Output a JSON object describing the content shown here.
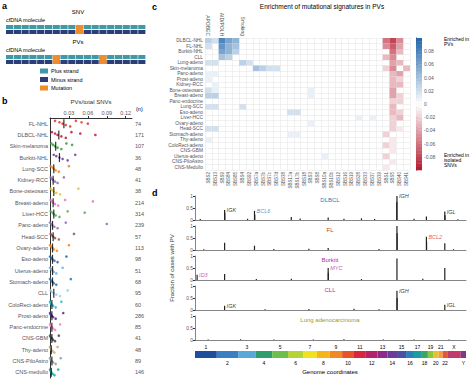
{
  "chart_data": [
    {
      "panel": "a",
      "type": "diagram",
      "rows": [
        {
          "label": "SNV",
          "text": "cfDNA molecule",
          "mutations": 1
        },
        {
          "label": "PVs",
          "text": "cfDNA molecule",
          "mutations": 2
        }
      ],
      "items": [
        {
          "label": "Plus strand",
          "color": "#3f9aa5"
        },
        {
          "label": "Minus strand",
          "color": "#2c3e7a"
        },
        {
          "label": "Mutation",
          "color": "#f08c2a"
        }
      ]
    },
    {
      "panel": "b",
      "type": "scatter",
      "orientation": "horizontal",
      "grid": false,
      "xlabel": "PVs/total SNVs",
      "n_label": "(n)",
      "xlim": [
        0,
        0.13
      ],
      "xticks": [
        0.03,
        0.06,
        0.09,
        0.12
      ],
      "categories": [
        "FL-NHL",
        "DLBCL-NHL",
        "Skin-melanoma",
        "Burkitt-NHL",
        "Lung-SCC",
        "Kidney-RCC",
        "Bone-osteosarc",
        "Breast-adeno",
        "Liver-HCC",
        "Panc-adeno",
        "Head-SCC",
        "Ovary-adeno",
        "Eso-adeno",
        "Uterus-adeno",
        "Stomach-adeno",
        "CLL",
        "ColoRect-adeno",
        "Prost-adeno",
        "Panc-endocrine",
        "CNS-GBM",
        "Thy-adeno",
        "CNS-PiloAstro",
        "CNS-medullo"
      ],
      "n": [
        74,
        171,
        107,
        36,
        48,
        41,
        38,
        214,
        314,
        239,
        57,
        113,
        98,
        51,
        68,
        95,
        60,
        286,
        85,
        41,
        48,
        89,
        146
      ],
      "colors": [
        "#e0342c",
        "#c8102e",
        "#2ca02c",
        "#6a3d9a",
        "#e6852a",
        "#8c6bb1",
        "#e6c229",
        "#e377c2",
        "#4daf4a",
        "#9467bd",
        "#8c564b",
        "#ff7f0e",
        "#1f5fa8",
        "#6baed6",
        "#2171b5",
        "#9ecae1",
        "#17becf",
        "#54278f",
        "#f781bf",
        "#444444",
        "#c7a76c",
        "#969696",
        "#1b9e9e"
      ],
      "medians": [
        0.022,
        0.014,
        0.009,
        0.015,
        0.006,
        0.005,
        0.006,
        0.005,
        0.006,
        0.004,
        0.005,
        0.004,
        0.004,
        0.004,
        0.004,
        0.006,
        0.003,
        0.003,
        0.003,
        0.003,
        0.002,
        0.003,
        0.002
      ],
      "points": [
        [
          0.008,
          0.015,
          0.02,
          0.025,
          0.032,
          0.041,
          0.05,
          0.06
        ],
        [
          0.003,
          0.008,
          0.012,
          0.018,
          0.025,
          0.034,
          0.048,
          0.072
        ],
        [
          0.002,
          0.005,
          0.008,
          0.012,
          0.018,
          0.026,
          0.035
        ],
        [
          0.006,
          0.01,
          0.015,
          0.02,
          0.028,
          0.04
        ],
        [
          0.001,
          0.004,
          0.006,
          0.009,
          0.014,
          0.03
        ],
        [
          0.001,
          0.003,
          0.005,
          0.008,
          0.012,
          0.022
        ],
        [
          0.001,
          0.003,
          0.006,
          0.01,
          0.016,
          0.045
        ],
        [
          0.001,
          0.003,
          0.005,
          0.008,
          0.013,
          0.024,
          0.068
        ],
        [
          0.001,
          0.004,
          0.006,
          0.009,
          0.015,
          0.028,
          0.055
        ],
        [
          0.0,
          0.002,
          0.004,
          0.007,
          0.012,
          0.025,
          0.09
        ],
        [
          0.001,
          0.003,
          0.005,
          0.008,
          0.014,
          0.038
        ],
        [
          0.0,
          0.002,
          0.004,
          0.006,
          0.011,
          0.03
        ],
        [
          0.0,
          0.002,
          0.004,
          0.007,
          0.012,
          0.026
        ],
        [
          0.0,
          0.002,
          0.004,
          0.006,
          0.01,
          0.02
        ],
        [
          0.0,
          0.002,
          0.004,
          0.006,
          0.01,
          0.033
        ],
        [
          0.001,
          0.003,
          0.006,
          0.01,
          0.016,
          0.028
        ],
        [
          0.0,
          0.001,
          0.003,
          0.005,
          0.009,
          0.018
        ],
        [
          0.0,
          0.001,
          0.003,
          0.005,
          0.009,
          0.021
        ],
        [
          0.0,
          0.001,
          0.003,
          0.005,
          0.008,
          0.016
        ],
        [
          0.0,
          0.001,
          0.003,
          0.005,
          0.008,
          0.014
        ],
        [
          0.0,
          0.001,
          0.002,
          0.004,
          0.007,
          0.012
        ],
        [
          0.0,
          0.001,
          0.003,
          0.005,
          0.009,
          0.017
        ],
        [
          0.0,
          0.001,
          0.002,
          0.004,
          0.007,
          0.013
        ]
      ]
    },
    {
      "panel": "c",
      "type": "heatmap",
      "grid": true,
      "title": "Enrichment of mutational signatures in PVs",
      "columns": [
        "SBS2",
        "SBS13",
        "SBS9",
        "SBS84",
        "SBS85",
        "SBS4",
        "SBS92",
        "SBS7a",
        "SBS7b",
        "SBS7c",
        "SBS7d",
        "SBS38",
        "SBS17a",
        "SBS17b",
        "SBS18",
        "SBS3",
        "SBS8",
        "SBS10a",
        "SBS10b",
        "SBS12",
        "SBS16",
        "SBS19",
        "SBS28",
        "SBS33",
        "SBS37",
        "SBS39",
        "SBS1",
        "SBS5",
        "SBS40",
        "SBS41"
      ],
      "rows": [
        "DLBCL-NHL",
        "FL-NHL",
        "Burkitt-NHL",
        "CLL",
        "Lung-adeno",
        "Skin-melanoma",
        "Panc-adeno",
        "Prost-adeno",
        "Kidney-RCC",
        "Bone-osteosarc",
        "Breast-adeno",
        "Panc-endocrine",
        "Lung-SCC",
        "Eso-adeno",
        "Liver-HCC",
        "Ovary-adeno",
        "Head-SCC",
        "Stomach-adeno",
        "Thy-adeno",
        "ColoRect-adeno",
        "CNS-GBM",
        "Uterus-adeno",
        "CNS-PiloAstro",
        "CNS-Medullo"
      ],
      "annotations": [
        {
          "label": "APOBEC",
          "columns": [
            "SBS2",
            "SBS13"
          ]
        },
        {
          "label": "AID/POLH",
          "columns": [
            "SBS9",
            "SBS84",
            "SBS85"
          ]
        },
        {
          "label": "Smoking",
          "columns": [
            "SBS4",
            "SBS92"
          ]
        }
      ],
      "cells": [
        [
          0,
          0,
          0.03
        ],
        [
          1,
          0,
          0.02
        ],
        [
          2,
          0,
          0.08
        ],
        [
          3,
          0,
          0.06
        ],
        [
          4,
          0,
          0.05
        ],
        [
          26,
          0,
          -0.06
        ],
        [
          27,
          0,
          -0.08
        ],
        [
          28,
          0,
          -0.05
        ],
        [
          0,
          1,
          0.02
        ],
        [
          2,
          1,
          0.07
        ],
        [
          3,
          1,
          0.05
        ],
        [
          4,
          1,
          0.04
        ],
        [
          26,
          1,
          -0.05
        ],
        [
          27,
          1,
          -0.07
        ],
        [
          28,
          1,
          -0.04
        ],
        [
          2,
          2,
          0.06
        ],
        [
          3,
          2,
          0.05
        ],
        [
          4,
          2,
          0.03
        ],
        [
          27,
          2,
          -0.06
        ],
        [
          28,
          2,
          -0.03
        ],
        [
          2,
          3,
          0.04
        ],
        [
          3,
          3,
          0.03
        ],
        [
          26,
          3,
          -0.03
        ],
        [
          27,
          3,
          -0.05
        ],
        [
          0,
          4,
          0.02
        ],
        [
          1,
          4,
          0.02
        ],
        [
          5,
          4,
          0.03
        ],
        [
          6,
          4,
          0.02
        ],
        [
          27,
          4,
          -0.04
        ],
        [
          28,
          4,
          -0.03
        ],
        [
          7,
          5,
          0.04
        ],
        [
          8,
          5,
          0.03
        ],
        [
          9,
          5,
          0.02
        ],
        [
          10,
          5,
          0.02
        ],
        [
          26,
          5,
          -0.02
        ],
        [
          27,
          5,
          -0.05
        ],
        [
          29,
          5,
          -0.03
        ],
        [
          0,
          6,
          0.01
        ],
        [
          1,
          6,
          0.01
        ],
        [
          27,
          6,
          -0.03
        ],
        [
          28,
          6,
          -0.04
        ],
        [
          0,
          7,
          0.01
        ],
        [
          27,
          7,
          -0.03
        ],
        [
          28,
          7,
          -0.02
        ],
        [
          1,
          8,
          0.01
        ],
        [
          27,
          8,
          -0.03
        ],
        [
          28,
          8,
          -0.03
        ],
        [
          0,
          9,
          0.02
        ],
        [
          1,
          9,
          0.01
        ],
        [
          15,
          9,
          0.01
        ],
        [
          27,
          9,
          -0.04
        ],
        [
          0,
          10,
          0.03
        ],
        [
          1,
          10,
          0.03
        ],
        [
          15,
          10,
          0.01
        ],
        [
          27,
          10,
          -0.04
        ],
        [
          28,
          10,
          -0.02
        ],
        [
          27,
          11,
          -0.02
        ],
        [
          28,
          11,
          -0.02
        ],
        [
          0,
          12,
          0.02
        ],
        [
          1,
          12,
          0.02
        ],
        [
          5,
          12,
          0.02
        ],
        [
          27,
          12,
          -0.03
        ],
        [
          12,
          13,
          0.02
        ],
        [
          13,
          13,
          0.02
        ],
        [
          27,
          13,
          -0.03
        ],
        [
          28,
          13,
          -0.02
        ],
        [
          22,
          14,
          0.01
        ],
        [
          24,
          14,
          0.01
        ],
        [
          27,
          14,
          -0.02
        ],
        [
          28,
          14,
          -0.03
        ],
        [
          15,
          15,
          0.01
        ],
        [
          27,
          15,
          -0.02
        ],
        [
          0,
          16,
          0.02
        ],
        [
          1,
          16,
          0.02
        ],
        [
          27,
          16,
          -0.02
        ],
        [
          28,
          16,
          -0.01
        ],
        [
          12,
          17,
          0.01
        ],
        [
          13,
          17,
          0.01
        ],
        [
          26,
          17,
          -0.02
        ],
        [
          0,
          18,
          0.01
        ],
        [
          27,
          18,
          -0.01
        ],
        [
          26,
          19,
          -0.02
        ],
        [
          27,
          19,
          -0.01
        ],
        [
          27,
          20,
          -0.01
        ],
        [
          17,
          21,
          0.01
        ],
        [
          26,
          21,
          -0.02
        ],
        [
          27,
          22,
          -0.01
        ],
        [
          26,
          23,
          -0.01
        ]
      ],
      "colorbar": {
        "range": [
          -0.1,
          0.1
        ],
        "ticks": [
          -0.08,
          -0.06,
          -0.04,
          -0.02,
          0,
          0.02,
          0.04,
          0.06,
          0.08
        ],
        "colors": [
          "#b2182b",
          "#ffffff",
          "#2166ac"
        ],
        "labels": {
          "top": "Enriched in PVs",
          "bottom": "Enriched in isolated SNVs"
        }
      }
    },
    {
      "panel": "d",
      "type": "bar",
      "tick_labels": "y",
      "xlabel": "Genome coordinates",
      "ylabel": "Fraction of cases with PV",
      "xlim": [
        0,
        3093
      ],
      "ylim": [
        0,
        1
      ],
      "yticks": [
        0,
        0.5,
        1
      ],
      "tracks": [
        {
          "name": "DLBCL",
          "color": "#2b7bba",
          "x": [
            60,
            338,
            340,
            600,
            679,
            682,
            1099,
            1200,
            1520,
            1700,
            1900,
            2050,
            2303,
            2305,
            2500,
            2641,
            2851,
            2853,
            3000
          ],
          "values": [
            0.04,
            0.42,
            0.3,
            0.05,
            0.38,
            0.22,
            0.12,
            0.06,
            0.1,
            0.05,
            0.07,
            0.04,
            0.75,
            1,
            0.05,
            0.15,
            0.35,
            0.2,
            0.03
          ],
          "annotations": [
            {
              "label": "IGK",
              "x": 338,
              "color": "#000000"
            },
            {
              "label": "BCL6",
              "x": 679,
              "color": "#2b7bba"
            },
            {
              "label": "IGH",
              "x": 2305,
              "color": "#000000"
            },
            {
              "label": "IGL",
              "x": 2851,
              "color": "#000000"
            }
          ]
        },
        {
          "name": "FL",
          "color": "#d9342b",
          "x": [
            100,
            338,
            679,
            900,
            1300,
            1520,
            2100,
            2305,
            2307,
            2641,
            2643,
            2851,
            2950
          ],
          "values": [
            0.03,
            0.3,
            0.18,
            0.04,
            0.05,
            0.08,
            0.04,
            1,
            0.7,
            0.55,
            0.35,
            0.28,
            0.03
          ],
          "annotations": [
            {
              "label": "BCL2",
              "x": 2641,
              "color": "#d9342b"
            }
          ]
        },
        {
          "name": "Burkitt",
          "color": "#c0279b",
          "x": [
            24,
            338,
            700,
            1100,
            1520,
            1522,
            1900,
            2305,
            2600,
            2851
          ],
          "values": [
            0.22,
            0.25,
            0.04,
            0.05,
            0.5,
            0.3,
            0.04,
            0.9,
            0.05,
            0.5
          ],
          "annotations": [
            {
              "label": "ID3",
              "x": 24,
              "color": "#c0279b"
            },
            {
              "label": "MYC",
              "x": 1520,
              "color": "#c0279b"
            }
          ]
        },
        {
          "name": "CLL",
          "color": "#b0308a",
          "x": [
            338,
            800,
            1300,
            1815,
            2100,
            2305,
            2307,
            2851
          ],
          "values": [
            0.18,
            0.03,
            0.04,
            0.05,
            0.03,
            0.8,
            0.5,
            0.22
          ],
          "annotations": [
            {
              "label": "IGK",
              "x": 338,
              "color": "#000000"
            },
            {
              "label": "IGH",
              "x": 2305,
              "color": "#000000"
            },
            {
              "label": "IGL",
              "x": 2851,
              "color": "#000000"
            }
          ]
        },
        {
          "name": "Lung adenocarcinoma",
          "color": "#9a9a1e",
          "x": [
            150,
            520,
            900,
            1350,
            1700,
            2150,
            2500,
            2900
          ],
          "values": [
            0.02,
            0.03,
            0.02,
            0.02,
            0.03,
            0.02,
            0.02,
            0.02
          ],
          "annotations": []
        }
      ],
      "chromosomes": {
        "categories": [
          "1",
          "2",
          "3",
          "4",
          "5",
          "6",
          "7",
          "8",
          "9",
          "10",
          "11",
          "12",
          "13",
          "14",
          "15",
          "16",
          "17",
          "18",
          "19",
          "20",
          "21",
          "22",
          "X",
          "Y"
        ],
        "start": [
          0,
          249,
          492,
          690,
          881,
          1062,
          1233,
          1392,
          1538,
          1679,
          1815,
          1950,
          2084,
          2199,
          2306,
          2409,
          2499,
          2580,
          2658,
          2717,
          2780,
          2828,
          2879,
          3034
        ],
        "end": [
          249,
          492,
          690,
          881,
          1062,
          1233,
          1392,
          1538,
          1679,
          1815,
          1950,
          2084,
          2199,
          2306,
          2409,
          2499,
          2580,
          2658,
          2717,
          2780,
          2828,
          2879,
          3034,
          3093
        ],
        "colors": [
          "#1f4e9c",
          "#3a7fc1",
          "#59a9d8",
          "#2e9e6e",
          "#6cbf4a",
          "#b5d334",
          "#f2e21d",
          "#f7b51b",
          "#f08a24",
          "#e8542a",
          "#d7263d",
          "#b5246b",
          "#8e2a8e",
          "#6a3d9a",
          "#4b4fa6",
          "#2c7fb8",
          "#1b9e9e",
          "#3aa66a",
          "#8cc63f",
          "#e6c229",
          "#f59d3d",
          "#e05a3a",
          "#c23b6b",
          "#7a3b8e"
        ]
      }
    }
  ]
}
